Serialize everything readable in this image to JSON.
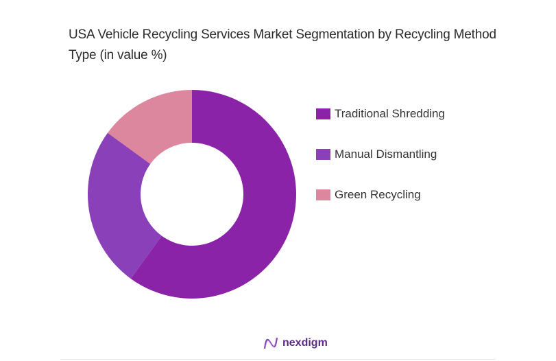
{
  "title": "USA Vehicle Recycling Services Market Segmentation by Recycling Method Type (in value %)",
  "legend": [
    {
      "label": "Traditional Shredding",
      "color": "#8b23a8"
    },
    {
      "label": "Manual Dismantling",
      "color": "#8a40b8"
    },
    {
      "label": "Green Recycling",
      "color": "#dd879f"
    }
  ],
  "footer": {
    "brand": "nexdigm",
    "logo_icon": "nexdigm-wave-logo"
  },
  "chart_data": {
    "type": "pie",
    "subtype": "donut",
    "title": "USA Vehicle Recycling Services Market Segmentation by Recycling Method Type (in value %)",
    "categories": [
      "Traditional Shredding",
      "Manual Dismantling",
      "Green Recycling"
    ],
    "values": [
      60,
      25,
      15
    ],
    "colors": [
      "#8b23a8",
      "#8a40b8",
      "#dd879f"
    ],
    "legend_position": "right",
    "start_angle": "top, clockwise"
  }
}
